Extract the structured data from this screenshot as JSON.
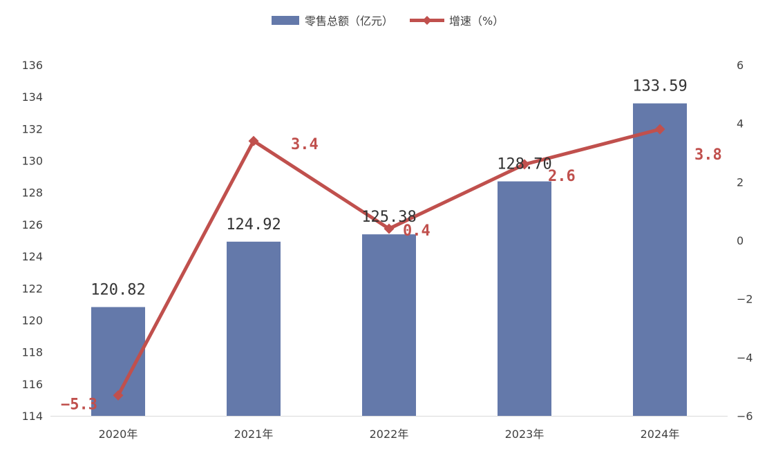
{
  "chart_data": {
    "type": "bar",
    "categories": [
      "2020年",
      "2021年",
      "2022年",
      "2023年",
      "2024年"
    ],
    "series": [
      {
        "name": "零售总额（亿元）",
        "type": "bar",
        "axis": "left",
        "values": [
          120.82,
          124.92,
          125.38,
          128.7,
          133.59
        ],
        "labels": [
          "120.82",
          "124.92",
          "125.38",
          "128.70",
          "133.59"
        ],
        "color": "#6479aa"
      },
      {
        "name": "增速（%）",
        "type": "line",
        "axis": "right",
        "values": [
          -5.3,
          3.4,
          0.4,
          2.6,
          3.8
        ],
        "labels": [
          "−5.3",
          "3.4",
          "0.4",
          "2.6",
          "3.8"
        ],
        "color": "#c0504d"
      }
    ],
    "y_left": {
      "ylim": [
        114,
        136
      ],
      "ticks": [
        "114",
        "116",
        "118",
        "120",
        "122",
        "124",
        "126",
        "128",
        "130",
        "132",
        "134",
        "136"
      ]
    },
    "y_right": {
      "ylim": [
        -6,
        6
      ],
      "ticks": [
        "−6",
        "−4",
        "−2",
        "0",
        "2",
        "4",
        "6"
      ]
    },
    "legend_position": "top-center",
    "grid": false
  }
}
